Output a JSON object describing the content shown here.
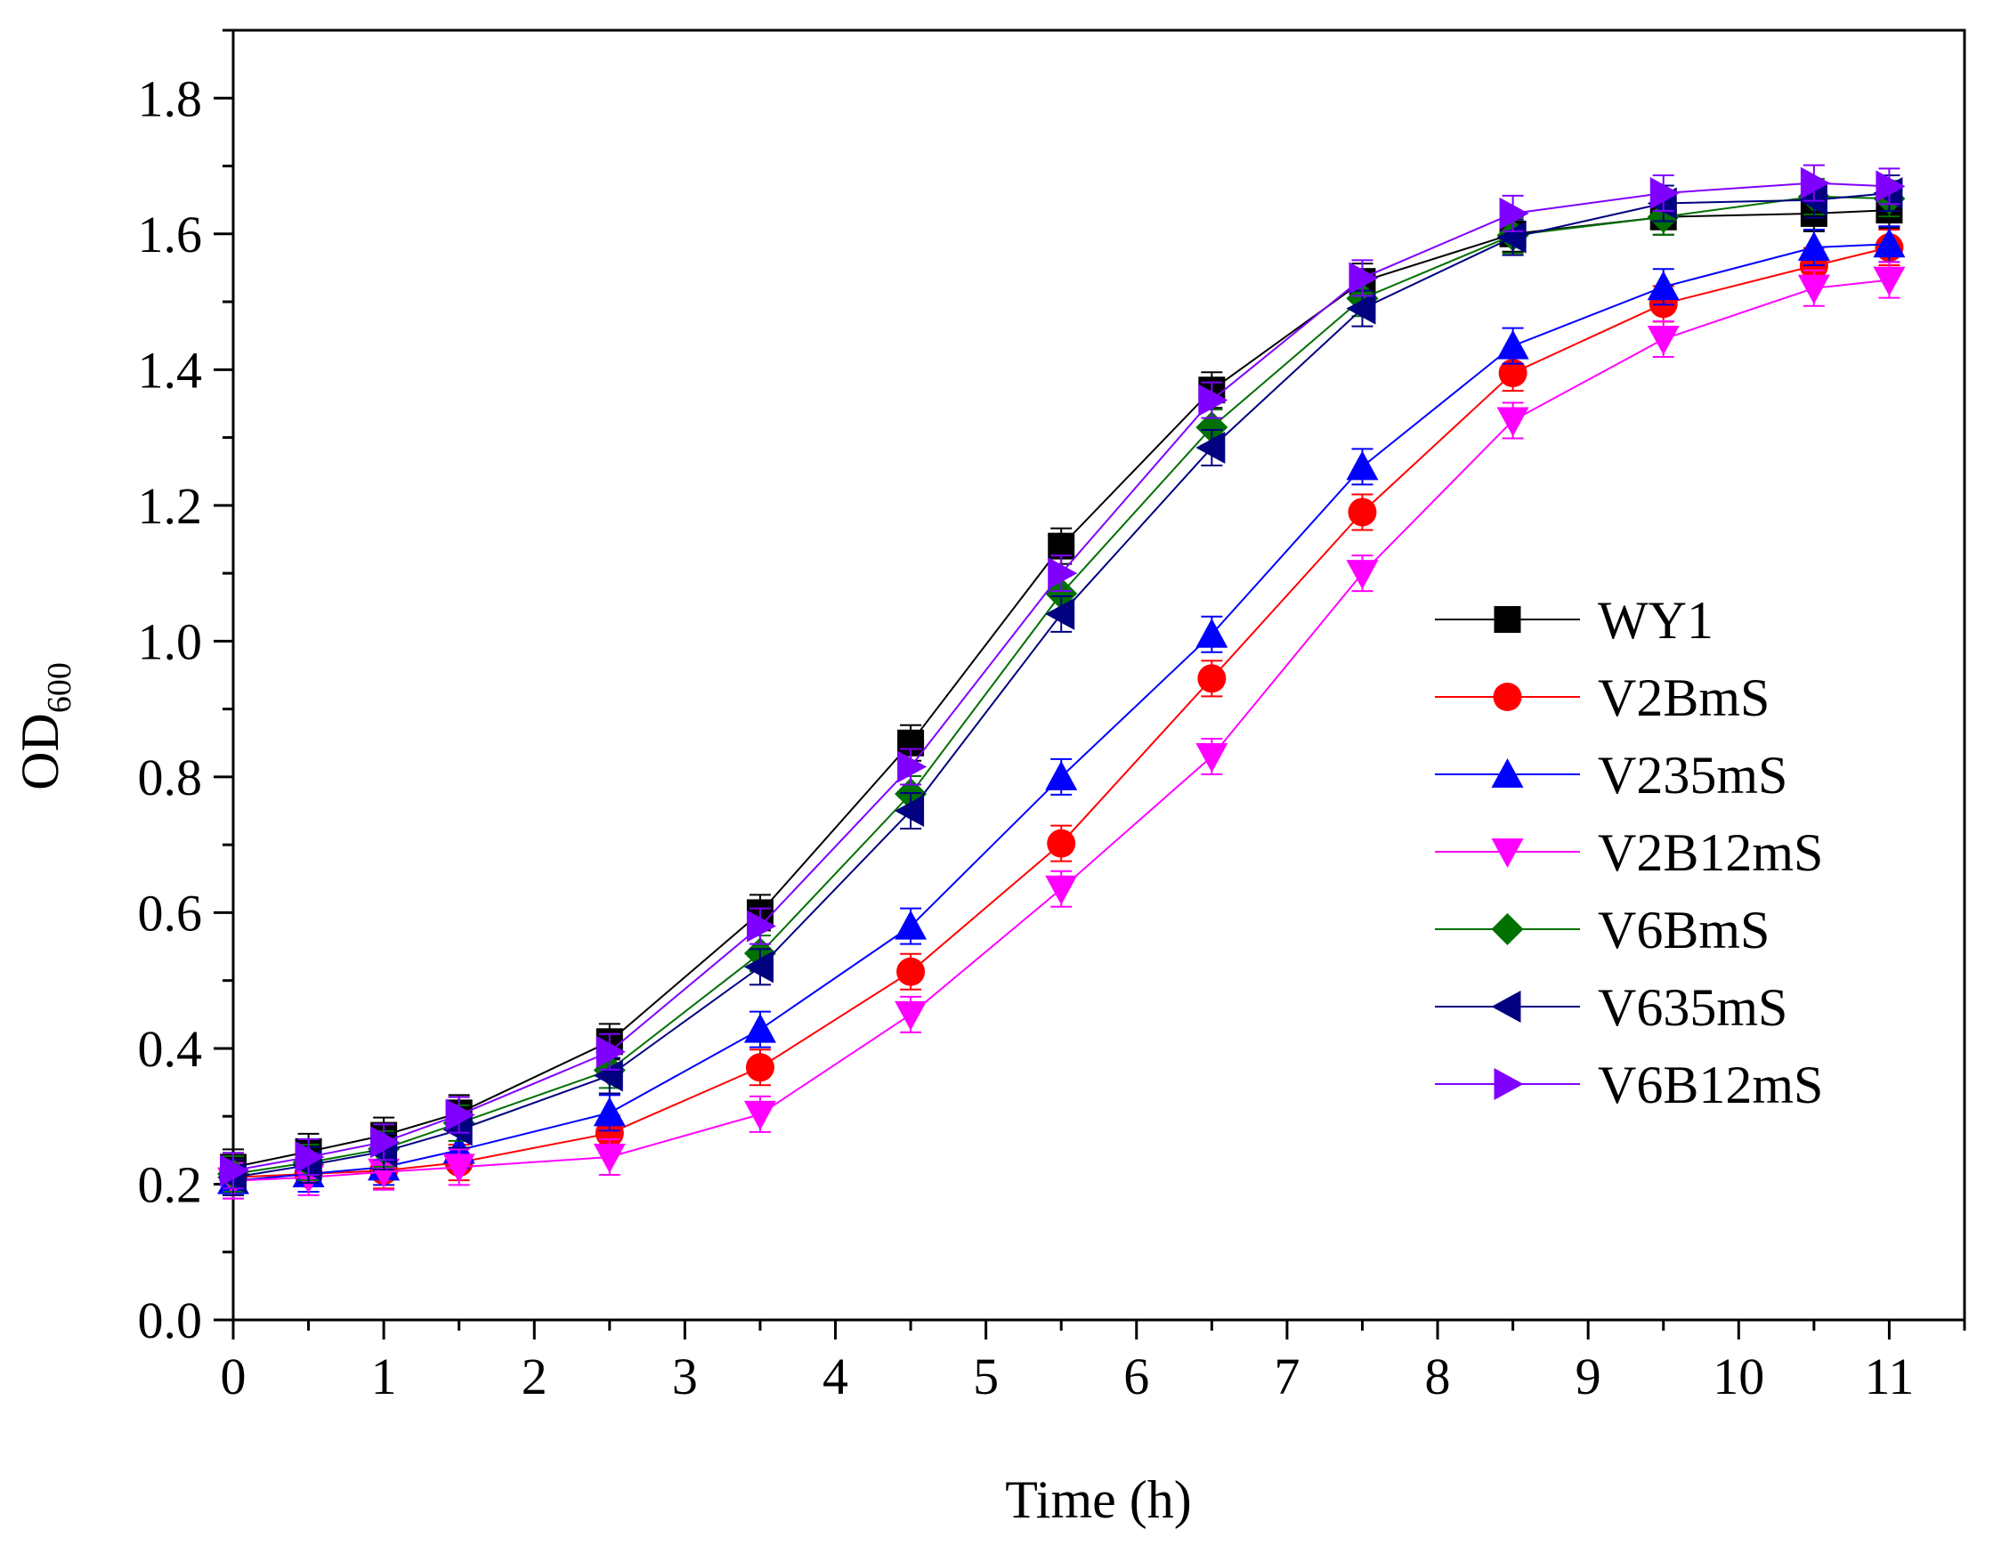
{
  "chart_data": {
    "type": "line",
    "title": "",
    "xlabel": "Time (h)",
    "ylabel": {
      "main": "OD",
      "sub": "600"
    },
    "xlim": [
      0,
      11.5
    ],
    "ylim": [
      0,
      1.9
    ],
    "xticks": [
      0,
      1,
      2,
      3,
      4,
      5,
      6,
      7,
      8,
      9,
      10,
      11
    ],
    "xtick_labels": [
      "0",
      "1",
      "2",
      "3",
      "4",
      "5",
      "6",
      "7",
      "8",
      "9",
      "10",
      "11"
    ],
    "yticks": [
      0,
      0.2,
      0.4,
      0.6,
      0.8,
      1.0,
      1.2,
      1.4,
      1.6,
      1.8
    ],
    "ytick_labels": [
      "0.0",
      "0.2",
      "0.4",
      "0.6",
      "0.8",
      "1.0",
      "1.2",
      "1.4",
      "1.6",
      "1.8"
    ],
    "legend_position": "center-right",
    "grid": false,
    "x": [
      0,
      0.5,
      1,
      1.5,
      2.5,
      3.5,
      4.5,
      5.5,
      6.5,
      7.5,
      8.5,
      9.5,
      10.5,
      11
    ],
    "series": [
      {
        "name": "WY1",
        "color": "#000000",
        "marker": "square",
        "values": [
          0.225,
          0.248,
          0.272,
          0.305,
          0.41,
          0.6,
          0.85,
          1.14,
          1.37,
          1.53,
          1.6,
          1.625,
          1.63,
          1.635
        ]
      },
      {
        "name": "V2BmS",
        "color": "#ff0000",
        "marker": "circle",
        "values": [
          0.21,
          0.215,
          0.22,
          0.232,
          0.275,
          0.372,
          0.513,
          0.702,
          0.945,
          1.19,
          1.395,
          1.497,
          1.553,
          1.58
        ]
      },
      {
        "name": "V235mS",
        "color": "#0000ff",
        "marker": "triangle-up",
        "values": [
          0.205,
          0.215,
          0.225,
          0.25,
          0.305,
          0.428,
          0.58,
          0.8,
          1.01,
          1.257,
          1.435,
          1.522,
          1.58,
          1.585
        ]
      },
      {
        "name": "V2B12mS",
        "color": "#ff00ff",
        "marker": "triangle-down",
        "values": [
          0.205,
          0.21,
          0.218,
          0.225,
          0.24,
          0.303,
          0.45,
          0.635,
          0.83,
          1.1,
          1.325,
          1.445,
          1.52,
          1.532
        ]
      },
      {
        "name": "V6BmS",
        "color": "#007000",
        "marker": "diamond",
        "values": [
          0.215,
          0.232,
          0.252,
          0.29,
          0.368,
          0.54,
          0.775,
          1.07,
          1.315,
          1.505,
          1.598,
          1.625,
          1.655,
          1.652
        ]
      },
      {
        "name": "V635mS",
        "color": "#000080",
        "marker": "triangle-left",
        "values": [
          0.21,
          0.228,
          0.248,
          0.28,
          0.36,
          0.52,
          0.75,
          1.04,
          1.285,
          1.49,
          1.595,
          1.645,
          1.65,
          1.66
        ]
      },
      {
        "name": "V6B12mS",
        "color": "#8000ff",
        "marker": "triangle-right",
        "values": [
          0.22,
          0.24,
          0.262,
          0.302,
          0.395,
          0.58,
          0.815,
          1.1,
          1.355,
          1.535,
          1.63,
          1.66,
          1.675,
          1.67
        ]
      }
    ]
  }
}
